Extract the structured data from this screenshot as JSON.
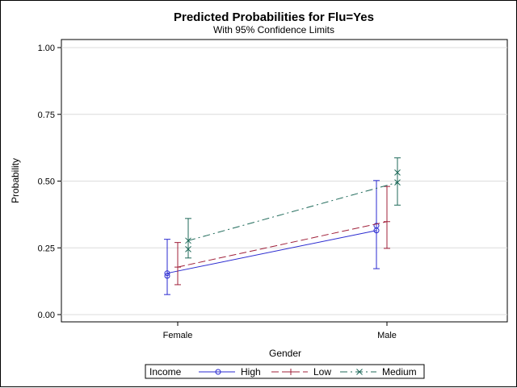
{
  "chart_data": {
    "type": "line",
    "title": "Predicted Probabilities for Flu=Yes",
    "subtitle": "With 95% Confidence Limits",
    "xlabel": "Gender",
    "ylabel": "Probability",
    "categories": [
      "Female",
      "Male"
    ],
    "ylim": [
      0,
      1
    ],
    "yticks": [
      "0.00",
      "0.25",
      "0.50",
      "0.75",
      "1.00"
    ],
    "grid": true,
    "legend_position": "bottom",
    "legend_title": "Income",
    "series": [
      {
        "name": "High",
        "color": "#2a2ad0",
        "marker": "circle",
        "line_style": "solid",
        "values": [
          0.155,
          0.315
        ],
        "extra_points": [
          0.145,
          0.333
        ],
        "lower": [
          0.075,
          0.172
        ],
        "upper": [
          0.282,
          0.502
        ]
      },
      {
        "name": "Low",
        "color": "#a0203a",
        "marker": "plus",
        "line_style": "dashed",
        "values": [
          0.178,
          0.348
        ],
        "extra_points": [],
        "lower": [
          0.112,
          0.248
        ],
        "upper": [
          0.27,
          0.48
        ]
      },
      {
        "name": "Medium",
        "color": "#1f6a5a",
        "marker": "x",
        "line_style": "dashdot",
        "values": [
          0.277,
          0.495
        ],
        "extra_points": [
          0.245,
          0.532
        ],
        "lower": [
          0.212,
          0.41
        ],
        "upper": [
          0.36,
          0.587
        ]
      }
    ]
  }
}
